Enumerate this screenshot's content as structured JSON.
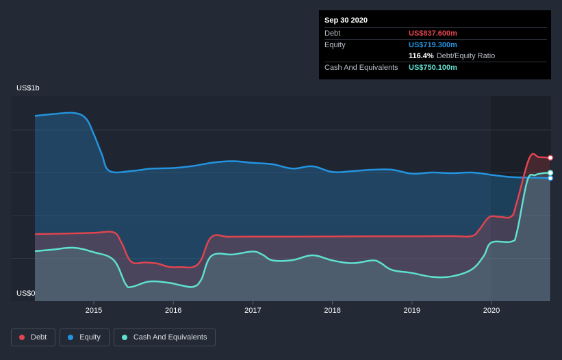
{
  "chart_data": {
    "type": "area",
    "y_axis_labels": {
      "top": "US$1b",
      "bottom": "US$0"
    },
    "ylim": [
      0,
      1200
    ],
    "x_ticks": [
      "2015",
      "2016",
      "2017",
      "2018",
      "2019",
      "2020"
    ],
    "series": [
      {
        "name": "Debt",
        "color": "#e0454f",
        "points": [
          [
            2014.26,
            392
          ],
          [
            2014.75,
            396
          ],
          [
            2015.0,
            399
          ],
          [
            2015.25,
            402
          ],
          [
            2015.35,
            340
          ],
          [
            2015.47,
            231
          ],
          [
            2015.65,
            226
          ],
          [
            2015.8,
            220
          ],
          [
            2015.95,
            200
          ],
          [
            2016.1,
            199
          ],
          [
            2016.25,
            200
          ],
          [
            2016.35,
            242
          ],
          [
            2016.48,
            375
          ],
          [
            2016.7,
            376
          ],
          [
            2017.0,
            377
          ],
          [
            2017.5,
            377
          ],
          [
            2018.0,
            378
          ],
          [
            2018.5,
            379
          ],
          [
            2019.0,
            379
          ],
          [
            2019.5,
            380
          ],
          [
            2019.75,
            380
          ],
          [
            2019.85,
            420
          ],
          [
            2019.97,
            491
          ],
          [
            2020.1,
            493
          ],
          [
            2020.25,
            495
          ],
          [
            2020.32,
            580
          ],
          [
            2020.48,
            840
          ],
          [
            2020.6,
            841
          ],
          [
            2020.74,
            838
          ]
        ]
      },
      {
        "name": "Equity",
        "color": "#2394df",
        "points": [
          [
            2014.26,
            1083
          ],
          [
            2014.5,
            1094
          ],
          [
            2014.75,
            1100
          ],
          [
            2014.9,
            1068
          ],
          [
            2015.0,
            976
          ],
          [
            2015.1,
            860
          ],
          [
            2015.2,
            760
          ],
          [
            2015.5,
            762
          ],
          [
            2015.7,
            774
          ],
          [
            2015.85,
            776
          ],
          [
            2016.0,
            778
          ],
          [
            2016.25,
            790
          ],
          [
            2016.5,
            810
          ],
          [
            2016.75,
            818
          ],
          [
            2017.0,
            808
          ],
          [
            2017.25,
            800
          ],
          [
            2017.5,
            775
          ],
          [
            2017.75,
            788
          ],
          [
            2018.0,
            755
          ],
          [
            2018.25,
            760
          ],
          [
            2018.5,
            768
          ],
          [
            2018.75,
            768
          ],
          [
            2019.0,
            745
          ],
          [
            2019.25,
            752
          ],
          [
            2019.5,
            748
          ],
          [
            2019.75,
            752
          ],
          [
            2020.0,
            738
          ],
          [
            2020.25,
            725
          ],
          [
            2020.5,
            722
          ],
          [
            2020.74,
            719
          ]
        ]
      },
      {
        "name": "Cash And Equivalents",
        "color": "#5fe0d0",
        "points": [
          [
            2014.26,
            292
          ],
          [
            2014.5,
            302
          ],
          [
            2014.75,
            312
          ],
          [
            2015.0,
            286
          ],
          [
            2015.25,
            240
          ],
          [
            2015.4,
            100
          ],
          [
            2015.48,
            84
          ],
          [
            2015.7,
            115
          ],
          [
            2015.95,
            107
          ],
          [
            2016.1,
            92
          ],
          [
            2016.25,
            84
          ],
          [
            2016.35,
            125
          ],
          [
            2016.48,
            265
          ],
          [
            2016.75,
            273
          ],
          [
            2017.0,
            290
          ],
          [
            2017.12,
            272
          ],
          [
            2017.25,
            238
          ],
          [
            2017.5,
            240
          ],
          [
            2017.75,
            268
          ],
          [
            2018.0,
            238
          ],
          [
            2018.25,
            222
          ],
          [
            2018.5,
            238
          ],
          [
            2018.6,
            225
          ],
          [
            2018.75,
            182
          ],
          [
            2019.0,
            165
          ],
          [
            2019.25,
            142
          ],
          [
            2019.5,
            145
          ],
          [
            2019.75,
            185
          ],
          [
            2019.9,
            262
          ],
          [
            2020.0,
            343
          ],
          [
            2020.25,
            348
          ],
          [
            2020.32,
            405
          ],
          [
            2020.45,
            704
          ],
          [
            2020.55,
            737
          ],
          [
            2020.65,
            748
          ],
          [
            2020.74,
            750
          ]
        ]
      }
    ]
  },
  "tooltip": {
    "date": "Sep 30 2020",
    "debt_label": "Debt",
    "debt_value": "US$837.600m",
    "debt_color": "#e0454f",
    "equity_label": "Equity",
    "equity_value": "US$719.300m",
    "equity_color": "#2394df",
    "ratio_value": "116.4%",
    "ratio_label": "Debt/Equity Ratio",
    "cash_label": "Cash And Equivalents",
    "cash_value": "US$750.100m",
    "cash_color": "#5fe0d0"
  },
  "legend": [
    {
      "label": "Debt",
      "color": "#e0454f"
    },
    {
      "label": "Equity",
      "color": "#2394df"
    },
    {
      "label": "Cash And Equivalents",
      "color": "#5fe0d0"
    }
  ]
}
